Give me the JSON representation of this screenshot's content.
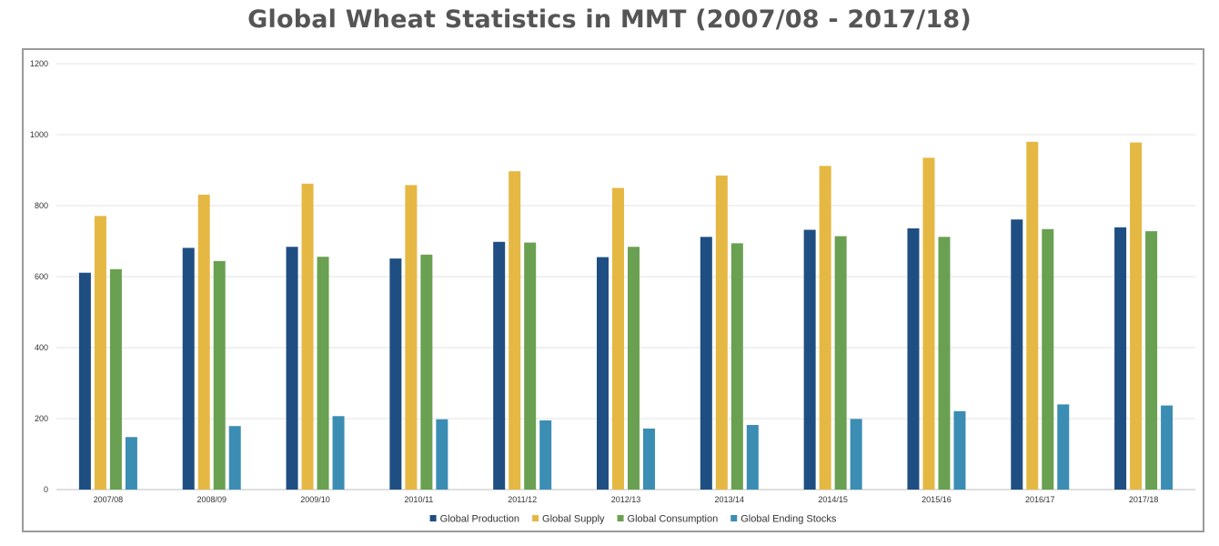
{
  "chart_data": {
    "type": "bar",
    "title": "Global Wheat Statistics in MMT (2007/08 - 2017/18)",
    "categories": [
      "2007/08",
      "2008/09",
      "2009/10",
      "2010/11",
      "2011/12",
      "2012/13",
      "2013/14",
      "2014/15",
      "2015/16",
      "2016/17",
      "2017/18"
    ],
    "series": [
      {
        "name": "Global Production",
        "color": "#1f4e82",
        "values": [
          611,
          681,
          684,
          651,
          698,
          655,
          712,
          732,
          736,
          761,
          739
        ]
      },
      {
        "name": "Global Supply",
        "color": "#e5b844",
        "values": [
          771,
          831,
          862,
          858,
          897,
          850,
          885,
          912,
          935,
          980,
          978
        ]
      },
      {
        "name": "Global Consumption",
        "color": "#6aa051",
        "values": [
          621,
          644,
          656,
          662,
          696,
          684,
          694,
          714,
          712,
          734,
          728
        ]
      },
      {
        "name": "Global Ending Stocks",
        "color": "#3b8db3",
        "values": [
          148,
          179,
          207,
          198,
          195,
          172,
          182,
          199,
          221,
          240,
          237
        ]
      }
    ],
    "ylim": [
      0,
      1200
    ],
    "yticks": [
      0,
      200,
      400,
      600,
      800,
      1000,
      1200
    ],
    "grid": true,
    "legend": "bottom",
    "xlabel": "",
    "ylabel": ""
  }
}
